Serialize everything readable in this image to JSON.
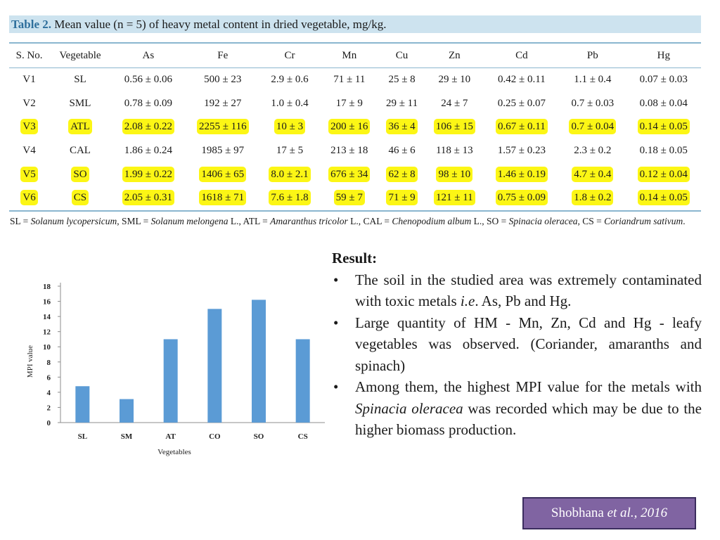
{
  "table": {
    "caption_label": "Table 2.",
    "caption_text": "Mean value (n = 5) of heavy metal content in dried vegetable, mg/kg.",
    "headers": [
      "S. No.",
      "Vegetable",
      "As",
      "Fe",
      "Cr",
      "Mn",
      "Cu",
      "Zn",
      "Cd",
      "Pb",
      "Hg"
    ],
    "highlight_color": "#fcf615",
    "rows": [
      {
        "highlighted": false,
        "cells": [
          "V1",
          "SL",
          "0.56 ± 0.06",
          "500 ± 23",
          "2.9 ± 0.6",
          "71 ± 11",
          "25 ± 8",
          "29 ± 10",
          "0.42 ± 0.11",
          "1.1 ± 0.4",
          "0.07 ± 0.03"
        ]
      },
      {
        "highlighted": false,
        "cells": [
          "V2",
          "SML",
          "0.78 ± 0.09",
          "192 ± 27",
          "1.0 ± 0.4",
          "17 ± 9",
          "29 ± 11",
          "24 ± 7",
          "0.25 ± 0.07",
          "0.7 ± 0.03",
          "0.08 ± 0.04"
        ]
      },
      {
        "highlighted": true,
        "cells": [
          "V3",
          "ATL",
          "2.08 ± 0.22",
          "2255 ± 116",
          "10 ± 3",
          "200 ± 16",
          "36 ± 4",
          "106 ± 15",
          "0.67 ± 0.11",
          "0.7 ± 0.04",
          "0.14 ± 0.05"
        ]
      },
      {
        "highlighted": false,
        "cells": [
          "V4",
          "CAL",
          "1.86 ± 0.24",
          "1985 ± 97",
          "17 ± 5",
          "213 ± 18",
          "46 ± 6",
          "118 ± 13",
          "1.57 ± 0.23",
          "2.3 ± 0.2",
          "0.18 ± 0.05"
        ]
      },
      {
        "highlighted": true,
        "cells": [
          "V5",
          "SO",
          "1.99 ± 0.22",
          "1406 ± 65",
          "8.0 ± 2.1",
          "676 ± 34",
          "62 ± 8",
          "98 ± 10",
          "1.46 ± 0.19",
          "4.7 ± 0.4",
          "0.12 ± 0.04"
        ]
      },
      {
        "highlighted": true,
        "cells": [
          "V6",
          "CS",
          "2.05 ± 0.31",
          "1618 ± 71",
          "7.6 ± 1.8",
          "59 ± 7",
          "71 ± 9",
          "121 ± 11",
          "0.75 ± 0.09",
          "1.8 ± 0.2",
          "0.14 ± 0.05"
        ]
      }
    ],
    "footnote": [
      {
        "text": "SL = "
      },
      {
        "text": "Solanum lycopersicum",
        "italic": true
      },
      {
        "text": ", SML = "
      },
      {
        "text": "Solanum melongena",
        "italic": true
      },
      {
        "text": " L., ATL = "
      },
      {
        "text": "Amaranthus tricolor",
        "italic": true
      },
      {
        "text": " L., CAL = "
      },
      {
        "text": "Chenopodium album",
        "italic": true
      },
      {
        "text": " L., SO = "
      },
      {
        "text": "Spinacia oleracea",
        "italic": true
      },
      {
        "text": ", CS = "
      },
      {
        "text": "Coriandrum sativum",
        "italic": true
      },
      {
        "text": "."
      }
    ]
  },
  "chart_data": {
    "type": "bar",
    "categories": [
      "SL",
      "SM",
      "AT",
      "CO",
      "SO",
      "CS"
    ],
    "values": [
      4.8,
      3.1,
      11,
      15,
      16.2,
      11
    ],
    "xlabel": "Vegetables",
    "ylabel": "MPI value",
    "ylim": [
      0,
      18
    ],
    "yticks": [
      "0",
      "2",
      "4",
      "6",
      "8",
      "10",
      "12",
      "14",
      "16",
      "18"
    ],
    "grid": false,
    "bar_color": "#5b9bd5"
  },
  "result": {
    "title": "Result:",
    "bullets": [
      [
        {
          "text": "The soil in the studied area was extremely contaminated with toxic metals "
        },
        {
          "text": "i.e",
          "italic": true
        },
        {
          "text": ". As, Pb and Hg."
        }
      ],
      [
        {
          "text": "Large quantity of HM - Mn, Zn, Cd and Hg - leafy vegetables was observed. (Coriander, amaranths and spinach)"
        }
      ],
      [
        {
          "text": "Among them, the highest MPI value for the metals with "
        },
        {
          "text": "Spinacia oleracea",
          "italic": true
        },
        {
          "text": "  was recorded which may be due to the higher biomass production."
        }
      ]
    ]
  },
  "citation": [
    {
      "text": "Shobhana "
    },
    {
      "text": "et al., 2016",
      "italic": true
    }
  ]
}
